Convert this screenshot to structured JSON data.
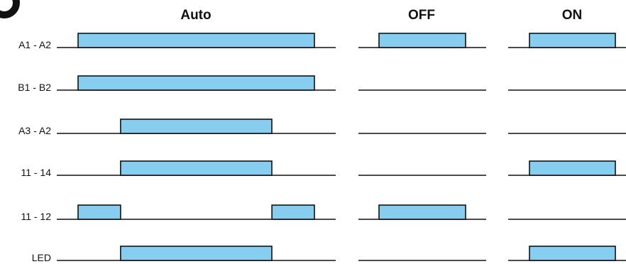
{
  "modes": [
    {
      "key": "auto",
      "label": "Auto"
    },
    {
      "key": "off",
      "label": "OFF"
    },
    {
      "key": "on",
      "label": "ON"
    }
  ],
  "colors": {
    "pulse_fill": "#87cdef",
    "line": "#111111",
    "background": "#ffffff"
  },
  "signals": [
    {
      "label": "A1 - A2",
      "auto": [
        [
          0.0,
          1.0
        ]
      ],
      "off": [
        [
          0.2,
          0.85
        ]
      ],
      "on": [
        [
          0.2,
          0.85
        ]
      ]
    },
    {
      "label": "B1 - B2",
      "auto": [
        [
          0.0,
          1.0
        ]
      ],
      "off": [],
      "on": []
    },
    {
      "label": "A3 - A2",
      "auto": [
        [
          0.18,
          0.82
        ]
      ],
      "off": [],
      "on": []
    },
    {
      "label": "11 - 14",
      "auto": [
        [
          0.18,
          0.82
        ]
      ],
      "off": [],
      "on": [
        [
          0.2,
          0.85
        ]
      ]
    },
    {
      "label": "11 - 12",
      "auto": [
        [
          0.0,
          0.18
        ],
        [
          0.82,
          1.0
        ]
      ],
      "off": [
        [
          0.2,
          0.85
        ]
      ],
      "on": []
    },
    {
      "label": "LED",
      "auto": [
        [
          0.18,
          0.82
        ]
      ],
      "off": [],
      "on": [
        [
          0.2,
          0.85
        ]
      ]
    }
  ]
}
